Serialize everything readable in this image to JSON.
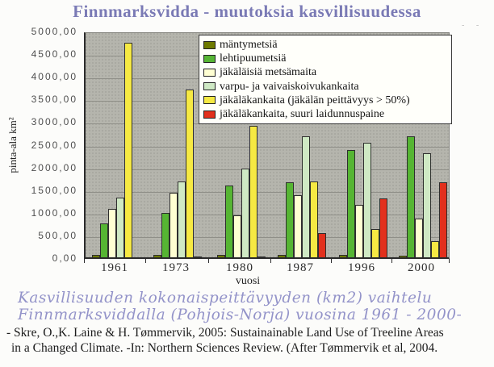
{
  "title": "Finnmarksvidda - muutoksia kasvillisuudessa",
  "scan_artifact": "- -",
  "chart_data": {
    "type": "bar",
    "title": "Finnmarksvidda - muutoksia kasvillisuudessa",
    "xlabel": "vuosi",
    "ylabel": "pinta-ala km²",
    "ylim": [
      0,
      5000
    ],
    "ytick_step": 500,
    "ytick_labels": [
      "5000,00",
      "4500,00",
      "4000,00",
      "3500,00",
      "3000,00",
      "2500,00",
      "2000,00",
      "1500,00",
      "1000,00",
      "500,00",
      "0,00"
    ],
    "categories": [
      "1961",
      "1973",
      "1980",
      "1987",
      "1996",
      "2000"
    ],
    "series": [
      {
        "name": "mäntymetsiä",
        "color": "#6e7a00",
        "values": [
          50,
          50,
          50,
          50,
          50,
          40
        ]
      },
      {
        "name": "lehtipuumetsiä",
        "color": "#56b533",
        "values": [
          750,
          975,
          1575,
          1650,
          2375,
          2675
        ]
      },
      {
        "name": "jäkäläisiä metsämaita",
        "color": "#ffffd2",
        "values": [
          1075,
          1425,
          925,
          1375,
          1150,
          850
        ]
      },
      {
        "name": "varpu- ja vaivaiskoivukankaita",
        "color": "#cfe9c4",
        "values": [
          1325,
          1675,
          1950,
          2675,
          2525,
          2300
        ]
      },
      {
        "name": "jäkäläkankaita (jäkälän peittävyys > 50%)",
        "color": "#f6e943",
        "values": [
          4725,
          3700,
          2900,
          1675,
          625,
          350
        ]
      },
      {
        "name": "jäkäläkankaita, suuri laidunnuspaine",
        "color": "#e2301d",
        "values": [
          0,
          15,
          15,
          525,
          1300,
          1650
        ]
      }
    ],
    "legend_position": "top-right",
    "grid": true,
    "plot_bg": "#b5b5ad",
    "gridline_color": "#8f8f88"
  },
  "caption": {
    "line1": "Kasvillisuuden kokonaispeittävyyden (km2) vaihtelu",
    "line2": "Finnmarksviddalla (Pohjois-Norja) vuosina 1961 - 2000-"
  },
  "reference": {
    "line1": "- Skre, O.,K. Laine & H. Tømmervik, 2005: Sustainainable Land Use of Treeline Areas",
    "line2": "in a Changed Climate. -In: Northern Sciences Review. (After Tømmervik et al, 2004."
  }
}
